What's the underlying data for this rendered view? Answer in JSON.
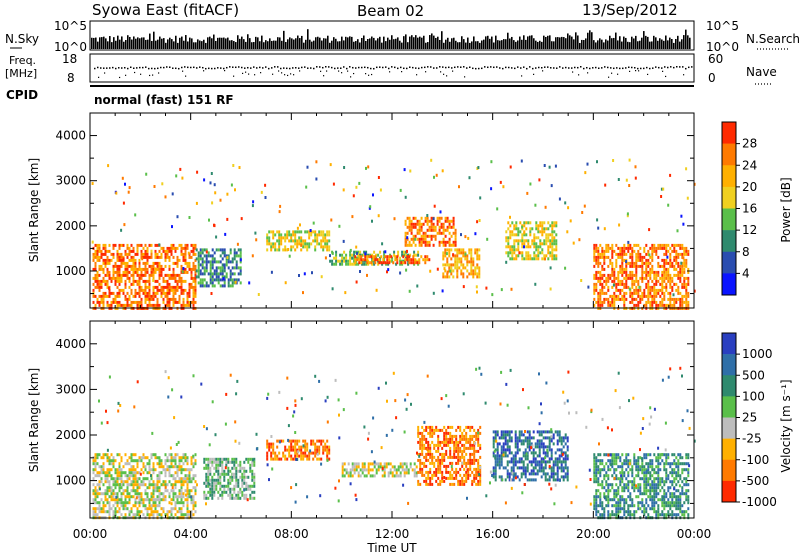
{
  "header": {
    "station": "Syowa East (fitACF)",
    "beam": "Beam 02",
    "date": "13/Sep/2012"
  },
  "strips": {
    "nsky_label": "N.Sky",
    "nsky_ticks": [
      "10^5",
      "10^0"
    ],
    "nsearch_label": "N.Search",
    "nsearch_ticks": [
      "10^5",
      "10^0"
    ],
    "freq_label": "Freq.",
    "freq_unit": "[MHz]",
    "freq_ticks": [
      "18",
      "8"
    ],
    "nave_label": "Nave",
    "nave_ticks": [
      "60",
      "0"
    ],
    "cpid_label": "CPID",
    "cpid_value": "normal (fast) 151 RF"
  },
  "chart_data": [
    {
      "type": "heatmap",
      "title": "",
      "xlabel": "",
      "ylabel": "Slant Range [km]",
      "x_ticks": [
        "00:00",
        "04:00",
        "08:00",
        "12:00",
        "16:00",
        "20:00",
        "00:00"
      ],
      "y_ticks": [
        "1000",
        "2000",
        "3000",
        "4000"
      ],
      "ylim": [
        180,
        4500
      ],
      "colorbar": {
        "label": "Power [dB]",
        "ticks": [
          "4",
          "8",
          "12",
          "16",
          "20",
          "24",
          "28"
        ],
        "colors": [
          "#0a14ff",
          "#2a4db0",
          "#2f8a6e",
          "#5abf4a",
          "#f0d020",
          "#ffb000",
          "#ff7a00",
          "#ff2a00"
        ]
      },
      "echo_regions": [
        {
          "t": [
            0.1,
            4.2
          ],
          "r": [
            200,
            1600
          ],
          "level": 24
        },
        {
          "t": [
            4.2,
            6.0
          ],
          "r": [
            700,
            1500
          ],
          "level": 8
        },
        {
          "t": [
            7.0,
            9.5
          ],
          "r": [
            1500,
            1900
          ],
          "level": 14
        },
        {
          "t": [
            9.5,
            13.0
          ],
          "r": [
            1150,
            1450
          ],
          "level": 10
        },
        {
          "t": [
            10.5,
            13.5
          ],
          "r": [
            1200,
            1350
          ],
          "level": 22
        },
        {
          "t": [
            12.5,
            14.5
          ],
          "r": [
            1600,
            2200
          ],
          "level": 24
        },
        {
          "t": [
            14.0,
            15.5
          ],
          "r": [
            900,
            1500
          ],
          "level": 18
        },
        {
          "t": [
            16.5,
            18.5
          ],
          "r": [
            1300,
            2100
          ],
          "level": 14
        },
        {
          "t": [
            20.0,
            23.8
          ],
          "r": [
            200,
            1600
          ],
          "level": 22
        }
      ]
    },
    {
      "type": "heatmap",
      "title": "",
      "xlabel": "Time UT",
      "ylabel": "Slant Range [km]",
      "x_ticks": [
        "00:00",
        "04:00",
        "08:00",
        "12:00",
        "16:00",
        "20:00",
        "00:00"
      ],
      "y_ticks": [
        "1000",
        "2000",
        "3000",
        "4000"
      ],
      "ylim": [
        180,
        4500
      ],
      "colorbar": {
        "label": "Velocity [m s⁻¹]",
        "ticks": [
          "1000",
          "500",
          "100",
          "25",
          "-25",
          "-100",
          "-500",
          "-1000"
        ],
        "colors": [
          "#2a3fc0",
          "#2f6fa8",
          "#2f8a6e",
          "#5abf4a",
          "#bdbdbd",
          "#ffb000",
          "#ff7a00",
          "#ff2a00"
        ]
      },
      "echo_regions": [
        {
          "t": [
            0.1,
            4.2
          ],
          "r": [
            200,
            1600
          ],
          "level": 4
        },
        {
          "t": [
            4.5,
            6.5
          ],
          "r": [
            600,
            1500
          ],
          "level": 3
        },
        {
          "t": [
            7.0,
            9.5
          ],
          "r": [
            1500,
            1900
          ],
          "level": 6
        },
        {
          "t": [
            10.0,
            13.0
          ],
          "r": [
            1100,
            1400
          ],
          "level": 4
        },
        {
          "t": [
            13.0,
            15.5
          ],
          "r": [
            900,
            2200
          ],
          "level": 6
        },
        {
          "t": [
            16.0,
            19.0
          ],
          "r": [
            1000,
            2100
          ],
          "level": 1
        },
        {
          "t": [
            20.0,
            23.8
          ],
          "r": [
            200,
            1600
          ],
          "level": 2
        }
      ]
    }
  ]
}
